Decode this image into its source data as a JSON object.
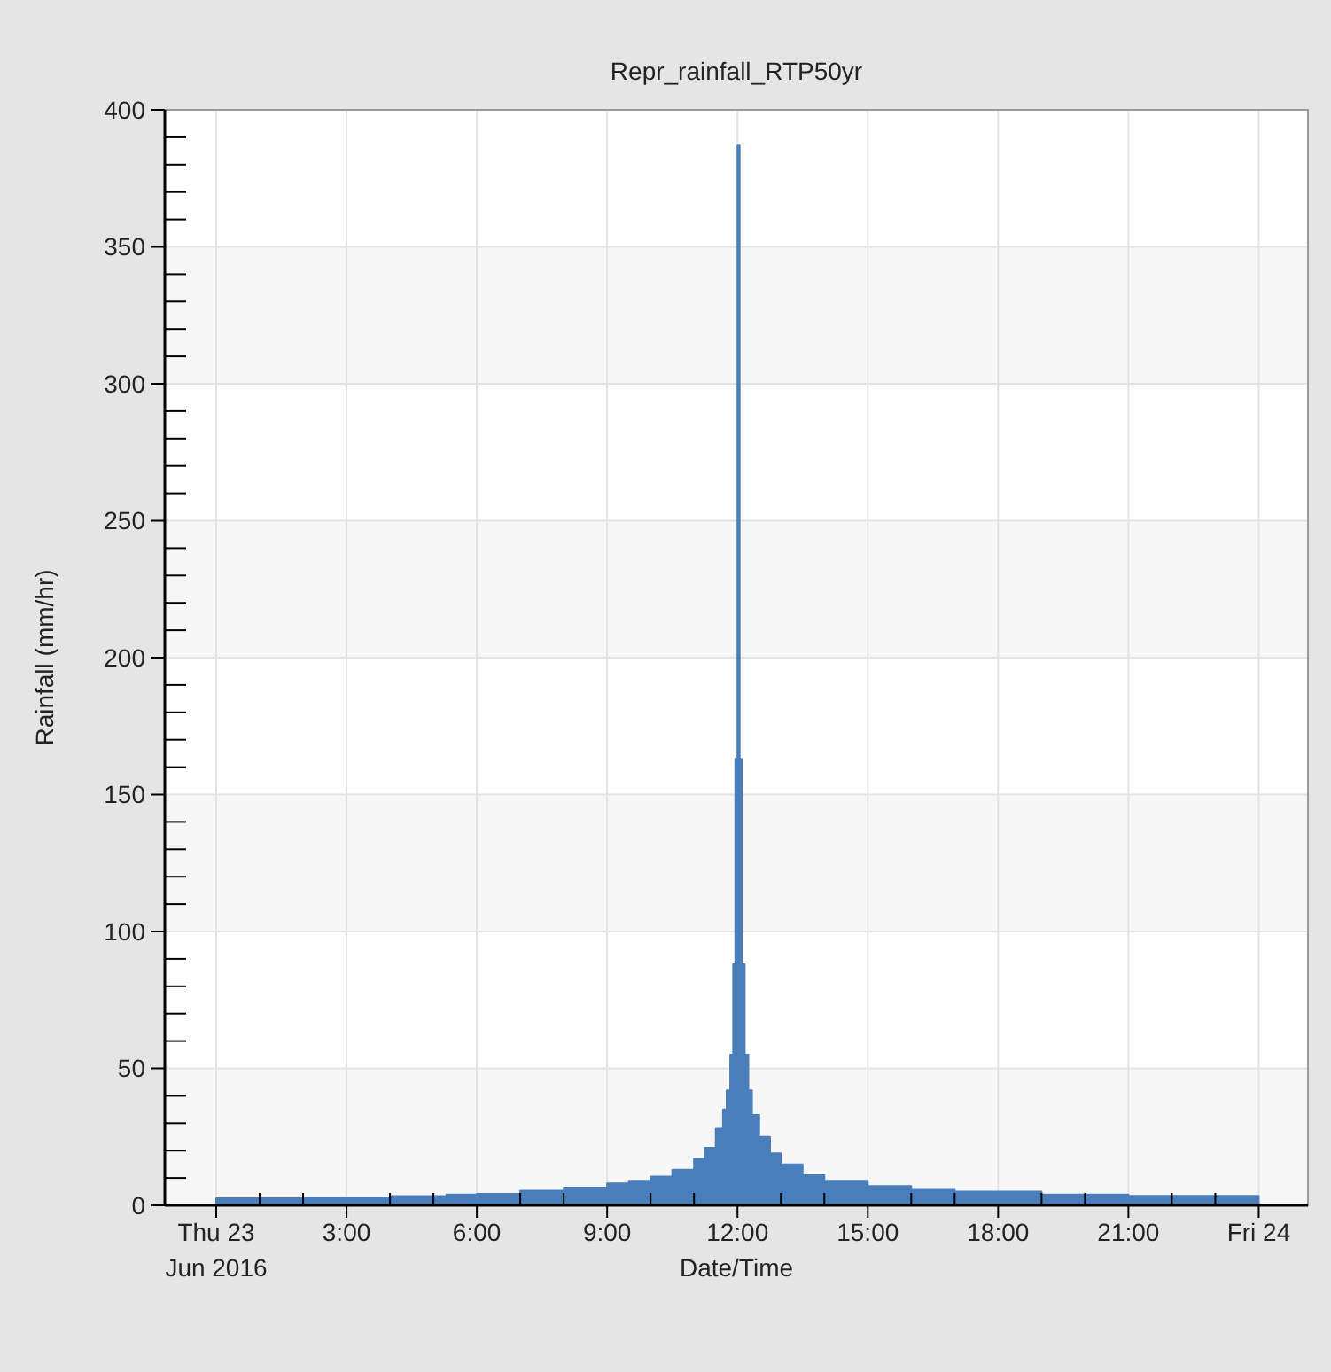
{
  "chart_data": {
    "type": "area",
    "title": "Repr_rainfall_RTP50yr",
    "xlabel": "Date/Time",
    "ylabel": "Rainfall (mm/hr)",
    "xlim": [
      "2016-06-22T22:49",
      "2016-06-24T01:08"
    ],
    "xticks": [
      {
        "value": "2016-06-23T00:00",
        "label": "Thu 23\nJun 2016"
      },
      {
        "value": "2016-06-23T01:00",
        "label": null
      },
      {
        "value": "2016-06-23T02:00",
        "label": null
      },
      {
        "value": "2016-06-23T03:00",
        "label": "3:00"
      },
      {
        "value": "2016-06-23T04:00",
        "label": null
      },
      {
        "value": "2016-06-23T05:00",
        "label": null
      },
      {
        "value": "2016-06-23T06:00",
        "label": "6:00"
      },
      {
        "value": "2016-06-23T07:00",
        "label": null
      },
      {
        "value": "2016-06-23T08:00",
        "label": null
      },
      {
        "value": "2016-06-23T09:00",
        "label": "9:00"
      },
      {
        "value": "2016-06-23T10:00",
        "label": null
      },
      {
        "value": "2016-06-23T11:00",
        "label": null
      },
      {
        "value": "2016-06-23T12:00",
        "label": "12:00"
      },
      {
        "value": "2016-06-23T13:00",
        "label": null
      },
      {
        "value": "2016-06-23T14:00",
        "label": null
      },
      {
        "value": "2016-06-23T15:00",
        "label": "15:00"
      },
      {
        "value": "2016-06-23T16:00",
        "label": null
      },
      {
        "value": "2016-06-23T17:00",
        "label": null
      },
      {
        "value": "2016-06-23T18:00",
        "label": "18:00"
      },
      {
        "value": "2016-06-23T19:00",
        "label": null
      },
      {
        "value": "2016-06-23T20:00",
        "label": null
      },
      {
        "value": "2016-06-23T21:00",
        "label": "21:00"
      },
      {
        "value": "2016-06-23T22:00",
        "label": null
      },
      {
        "value": "2016-06-23T23:00",
        "label": null
      },
      {
        "value": "2016-06-24T00:00",
        "label": "Fri 24"
      }
    ],
    "ylim": [
      0,
      400
    ],
    "yticks": [
      0,
      {
        "value": 10,
        "label": null
      },
      {
        "value": 20,
        "label": null
      },
      {
        "value": 30,
        "label": null
      },
      {
        "value": 40,
        "label": null
      },
      50,
      {
        "value": 60,
        "label": null
      },
      {
        "value": 70,
        "label": null
      },
      {
        "value": 80,
        "label": null
      },
      {
        "value": 90,
        "label": null
      },
      100,
      {
        "value": 110,
        "label": null
      },
      {
        "value": 120,
        "label": null
      },
      {
        "value": 130,
        "label": null
      },
      {
        "value": 140,
        "label": null
      },
      150,
      {
        "value": 160,
        "label": null
      },
      {
        "value": 170,
        "label": null
      },
      {
        "value": 180,
        "label": null
      },
      {
        "value": 190,
        "label": null
      },
      200,
      {
        "value": 210,
        "label": null
      },
      {
        "value": 220,
        "label": null
      },
      {
        "value": 230,
        "label": null
      },
      {
        "value": 240,
        "label": null
      },
      250,
      {
        "value": 260,
        "label": null
      },
      {
        "value": 270,
        "label": null
      },
      {
        "value": 280,
        "label": null
      },
      {
        "value": 290,
        "label": null
      },
      300,
      {
        "value": 310,
        "label": null
      },
      {
        "value": 320,
        "label": null
      },
      {
        "value": 330,
        "label": null
      },
      {
        "value": 340,
        "label": null
      },
      350,
      {
        "value": 360,
        "label": null
      },
      {
        "value": 370,
        "label": null
      },
      {
        "value": 380,
        "label": null
      },
      {
        "value": 390,
        "label": null
      },
      400
    ],
    "grid": true,
    "x": [
      "2016-06-23T00:00",
      "2016-06-23T02:00",
      "2016-06-23T02:00",
      "2016-06-23T04:00",
      "2016-06-23T04:00",
      "2016-06-23T05:18",
      "2016-06-23T05:18",
      "2016-06-23T06:00",
      "2016-06-23T06:00",
      "2016-06-23T07:00",
      "2016-06-23T07:00",
      "2016-06-23T08:00",
      "2016-06-23T08:00",
      "2016-06-23T09:00",
      "2016-06-23T09:00",
      "2016-06-23T09:30",
      "2016-06-23T09:30",
      "2016-06-23T10:00",
      "2016-06-23T10:00",
      "2016-06-23T10:30",
      "2016-06-23T10:30",
      "2016-06-23T11:00",
      "2016-06-23T11:00",
      "2016-06-23T11:15",
      "2016-06-23T11:15",
      "2016-06-23T11:30",
      "2016-06-23T11:30",
      "2016-06-23T11:40",
      "2016-06-23T11:40",
      "2016-06-23T11:45",
      "2016-06-23T11:45",
      "2016-06-23T11:50",
      "2016-06-23T11:50",
      "2016-06-23T11:54",
      "2016-06-23T11:54",
      "2016-06-23T11:57",
      "2016-06-23T11:57",
      "2016-06-23T12:00",
      "2016-06-23T12:00",
      "2016-06-23T12:03",
      "2016-06-23T12:03",
      "2016-06-23T12:06",
      "2016-06-23T12:06",
      "2016-06-23T12:10",
      "2016-06-23T12:10",
      "2016-06-23T12:15",
      "2016-06-23T12:15",
      "2016-06-23T12:20",
      "2016-06-23T12:20",
      "2016-06-23T12:30",
      "2016-06-23T12:30",
      "2016-06-23T12:45",
      "2016-06-23T12:45",
      "2016-06-23T13:00",
      "2016-06-23T13:00",
      "2016-06-23T13:30",
      "2016-06-23T13:30",
      "2016-06-23T14:00",
      "2016-06-23T14:00",
      "2016-06-23T15:00",
      "2016-06-23T15:00",
      "2016-06-23T16:00",
      "2016-06-23T16:00",
      "2016-06-23T17:00",
      "2016-06-23T17:00",
      "2016-06-23T19:00",
      "2016-06-23T19:00",
      "2016-06-23T21:00",
      "2016-06-23T21:00",
      "2016-06-24T00:00"
    ],
    "series": [
      {
        "color": "#4a7ebb",
        "values": [
          2.6,
          2.6,
          2.9,
          2.9,
          3.4,
          3.4,
          4,
          4,
          4.2,
          4.2,
          5.3,
          5.3,
          6.5,
          6.5,
          8,
          8,
          9,
          9,
          10.5,
          10.5,
          13,
          13,
          17,
          17,
          21,
          21,
          28,
          28,
          35,
          35,
          42,
          42,
          55,
          55,
          88,
          88,
          163,
          163,
          387,
          387,
          163,
          163,
          88,
          88,
          55,
          55,
          42,
          42,
          33,
          33,
          25,
          25,
          19,
          19,
          15,
          15,
          11,
          11,
          9,
          9,
          7,
          7,
          6,
          6,
          5,
          5,
          4,
          4,
          3.5,
          3.5
        ]
      }
    ]
  }
}
